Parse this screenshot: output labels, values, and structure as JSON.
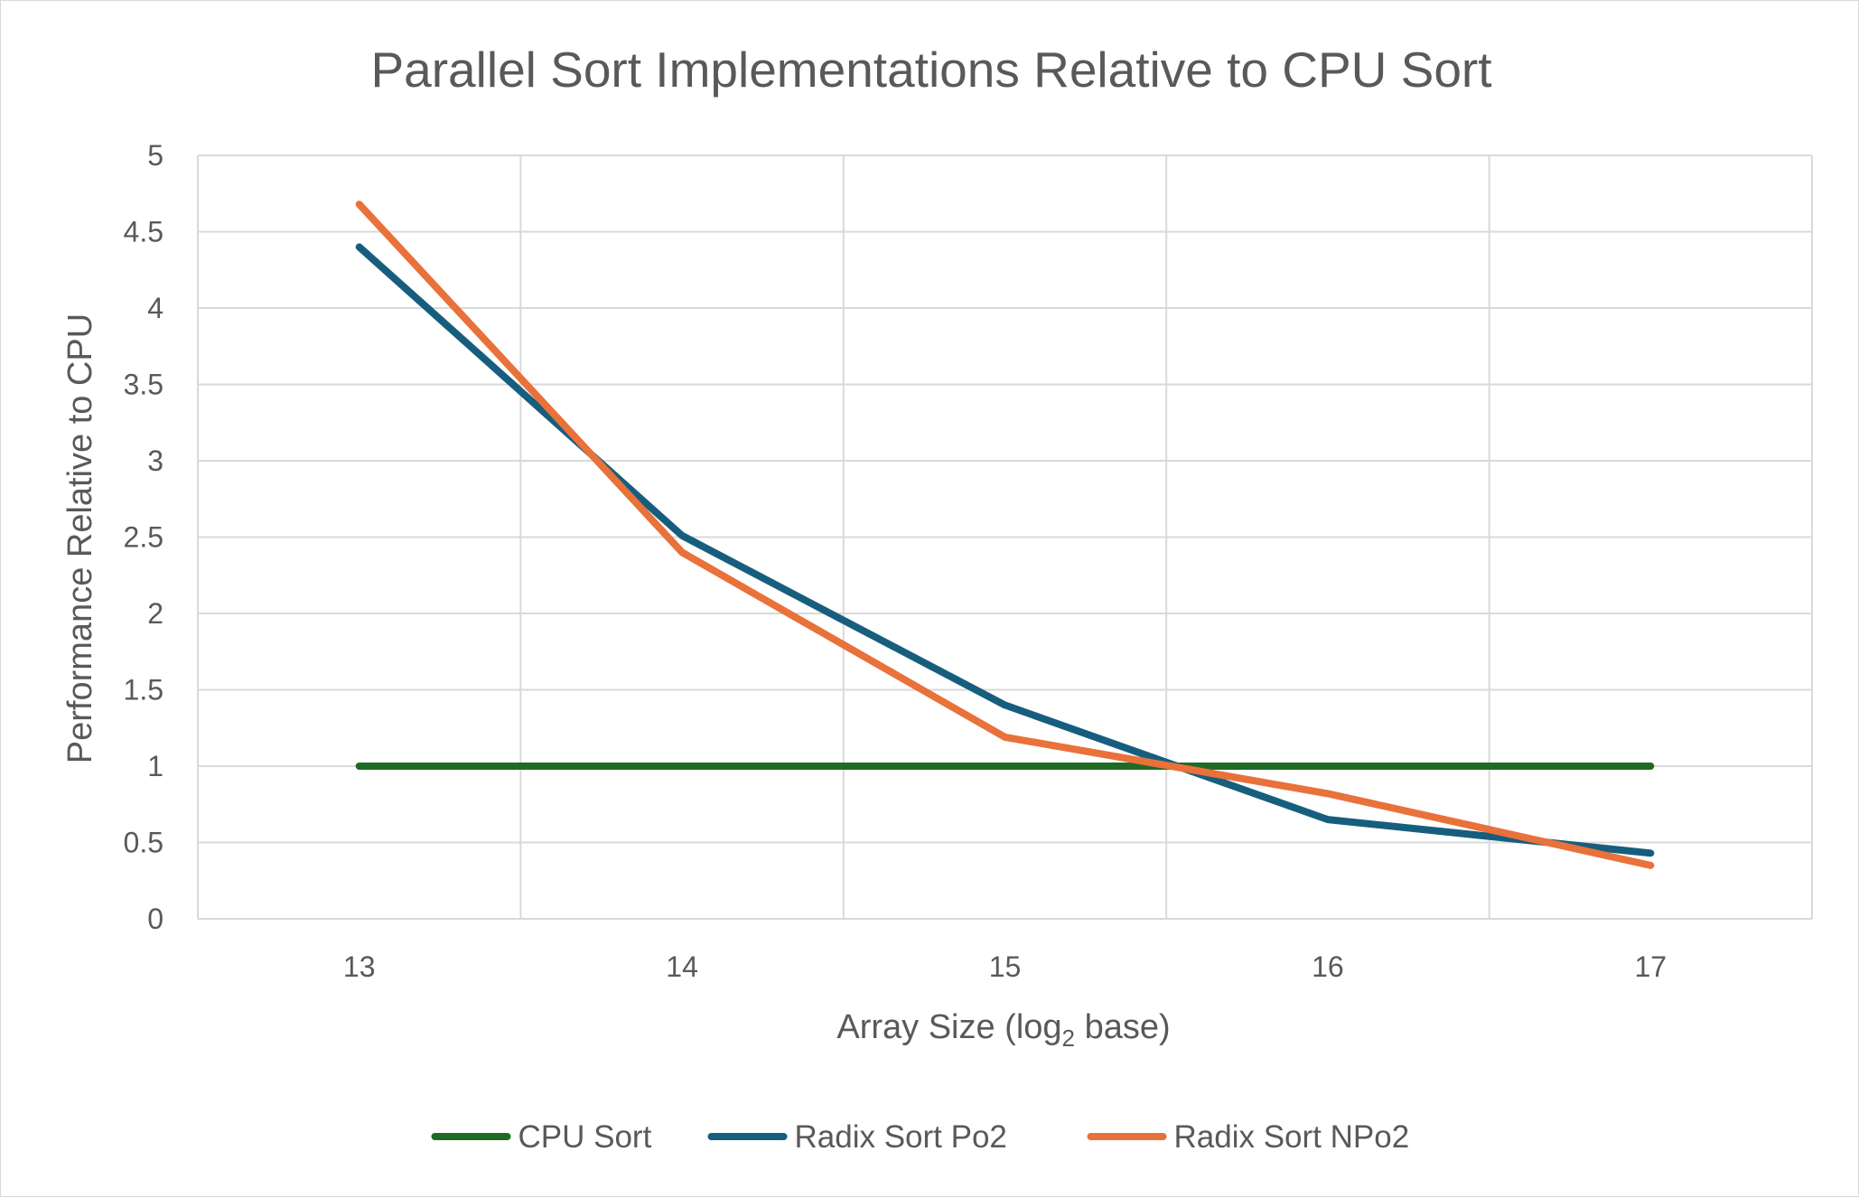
{
  "chart_data": {
    "type": "line",
    "title": "Parallel Sort Implementations Relative to CPU Sort",
    "xlabel": "Array Size (log",
    "xlabel_subscript": "2",
    "xlabel_suffix": " base)",
    "ylabel": "Performance Relative to CPU",
    "categories": [
      "13",
      "14",
      "15",
      "16",
      "17"
    ],
    "ylim": [
      0,
      5
    ],
    "yticks": [
      "0",
      "0.5",
      "1",
      "1.5",
      "2",
      "2.5",
      "3",
      "3.5",
      "4",
      "4.5",
      "5"
    ],
    "grid": true,
    "legend_position": "bottom",
    "series": [
      {
        "name": "CPU Sort",
        "color": "#1e6b24",
        "values": [
          1,
          1,
          1,
          1,
          1
        ]
      },
      {
        "name": "Radix Sort Po2",
        "color": "#175e7e",
        "values": [
          4.4,
          2.51,
          1.4,
          0.65,
          0.43
        ]
      },
      {
        "name": "Radix Sort NPo2",
        "color": "#e9713a",
        "values": [
          4.68,
          2.4,
          1.19,
          0.82,
          0.35
        ]
      }
    ]
  }
}
